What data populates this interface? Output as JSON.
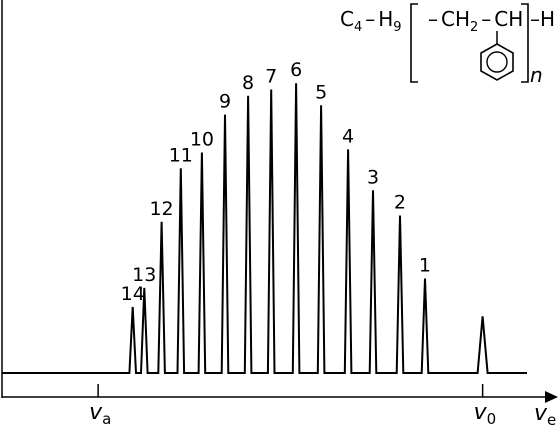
{
  "chart_data": {
    "type": "line",
    "title": "",
    "xlabel": "v",
    "xlabel_sub": "e",
    "ylabel": "",
    "grid": false,
    "x_ticks": [
      {
        "label": "v",
        "sub": "a",
        "value": 0
      },
      {
        "label": "v",
        "sub": "0",
        "value": 100
      }
    ],
    "xlim": [
      -25,
      117
    ],
    "ylim": [
      0,
      100
    ],
    "baseline_y": 0,
    "peaks": [
      {
        "label": "14",
        "x": 9,
        "height": 21
      },
      {
        "label": "13",
        "x": 12,
        "height": 27
      },
      {
        "label": "12",
        "x": 16.5,
        "height": 48
      },
      {
        "label": "11",
        "x": 21.5,
        "height": 65
      },
      {
        "label": "10",
        "x": 27,
        "height": 70
      },
      {
        "label": "9",
        "x": 33,
        "height": 82
      },
      {
        "label": "8",
        "x": 39,
        "height": 88
      },
      {
        "label": "7",
        "x": 45,
        "height": 90
      },
      {
        "label": "6",
        "x": 51.5,
        "height": 92
      },
      {
        "label": "5",
        "x": 58,
        "height": 85
      },
      {
        "label": "4",
        "x": 65,
        "height": 71
      },
      {
        "label": "3",
        "x": 71.5,
        "height": 58
      },
      {
        "label": "2",
        "x": 78.5,
        "height": 50
      },
      {
        "label": "1",
        "x": 85,
        "height": 30
      },
      {
        "label": "",
        "x": 100,
        "height": 18
      }
    ],
    "annotation": {
      "formula_prefix": "C",
      "formula_prefix_sub": "4",
      "formula_dash": "–",
      "formula_h": "H",
      "formula_h_sub": "9",
      "repeat_ch2": "CH",
      "repeat_ch2_sub": "2",
      "repeat_dash": "–",
      "repeat_ch": "CH",
      "end_group": "–H",
      "repeat_index": "n"
    }
  }
}
